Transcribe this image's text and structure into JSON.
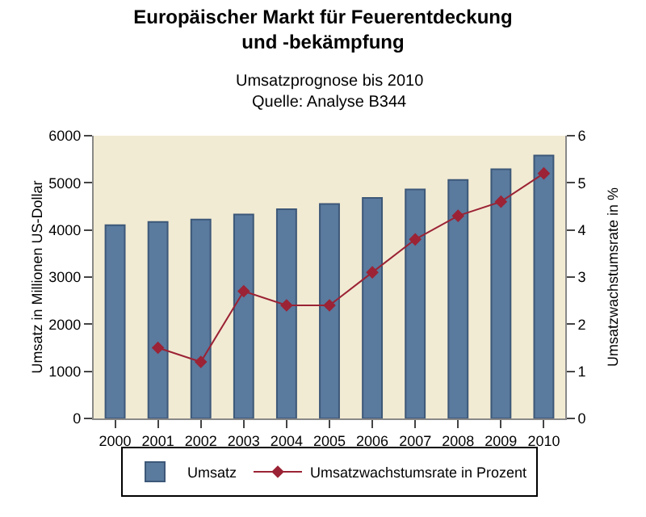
{
  "chart_data": {
    "type": "bar",
    "title": "Europäischer Markt für Feuerentdeckung\nund -bekämpfung",
    "subtitle": "Umsatzprognose bis 2010",
    "annotations": [
      "Quelle: Analyse B344"
    ],
    "categories": [
      "2000",
      "2001",
      "2002",
      "2003",
      "2004",
      "2005",
      "2006",
      "2007",
      "2008",
      "2009",
      "2010"
    ],
    "series": [
      {
        "name": "Umsatz",
        "color": "#5a7a9e",
        "values": [
          4100,
          4170,
          4220,
          4330,
          4440,
          4550,
          4680,
          4860,
          5060,
          5290,
          5580
        ]
      },
      {
        "name": "Umsatzwachstumsrate in Prozent",
        "type": "line",
        "axis": "y2",
        "color": "#9b2335",
        "marker": "diamond",
        "values": [
          null,
          1.5,
          1.2,
          2.7,
          2.4,
          2.4,
          3.1,
          3.8,
          4.3,
          4.6,
          5.2
        ]
      }
    ],
    "ylabel": "Umsatz in Millionen US-Dollar",
    "y2label": "Umsatzwachstumsrate in %",
    "ylim": [
      0,
      6000
    ],
    "yticks": [
      0,
      1000,
      2000,
      3000,
      4000,
      5000,
      6000
    ],
    "y2lim": [
      0,
      6
    ],
    "y2ticks": [
      0,
      1,
      2,
      3,
      4,
      5,
      6
    ],
    "grid": false,
    "legend": "bottom"
  }
}
